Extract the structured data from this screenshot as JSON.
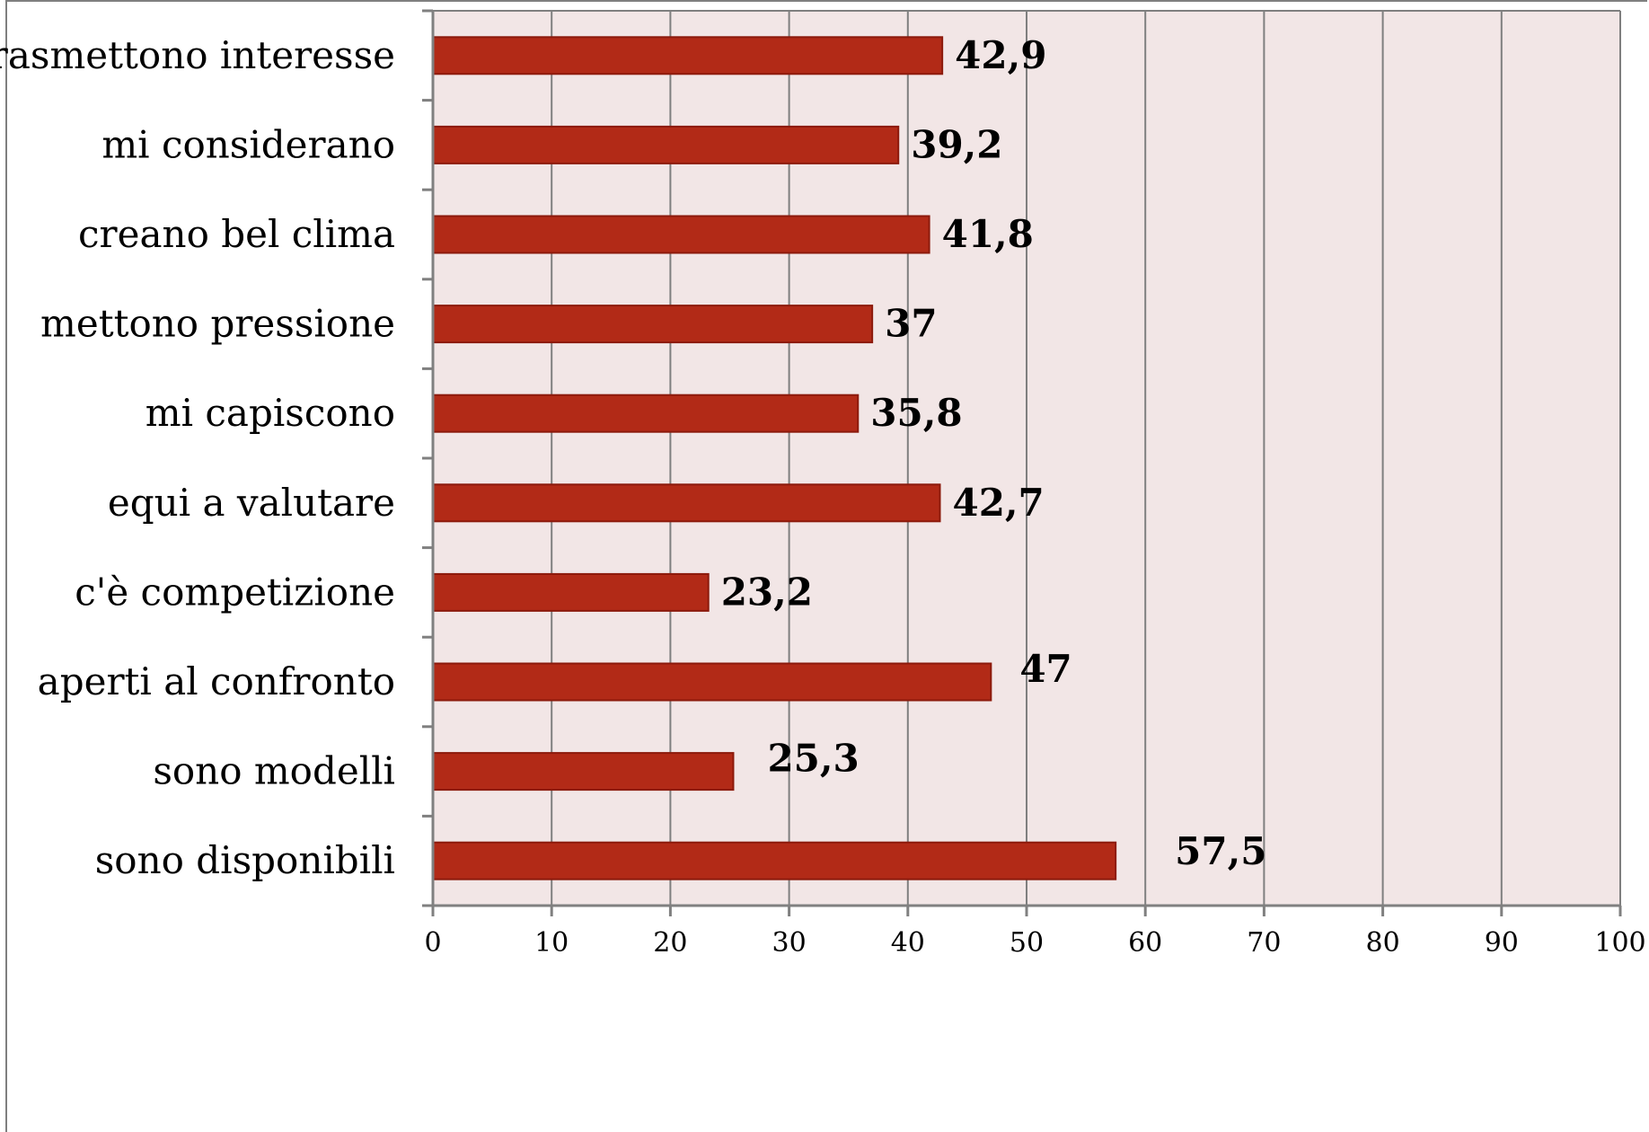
{
  "chart_data": {
    "type": "bar",
    "orientation": "horizontal",
    "title": "",
    "xlabel": "",
    "ylabel": "",
    "categories": [
      "trasmettono interesse",
      "mi considerano",
      "creano bel clima",
      "mettono pressione",
      "mi capiscono",
      "equi a valutare",
      "c'è competizione",
      "aperti al confronto",
      "sono modelli",
      "sono disponibili"
    ],
    "values": [
      42.9,
      39.2,
      41.8,
      37,
      35.8,
      42.7,
      23.2,
      47,
      25.3,
      57.5
    ],
    "value_labels": [
      "42,9",
      "39,2",
      "41,8",
      "37",
      "35,8",
      "42,7",
      "23,2",
      "47",
      "25,3",
      "57,5"
    ],
    "xlim": [
      0,
      100
    ],
    "xticks": [
      0,
      10,
      20,
      30,
      40,
      50,
      60,
      70,
      80,
      90,
      100
    ],
    "grid": "vertical",
    "legend": "none",
    "colors": {
      "bar_fill": "#b22a17",
      "bar_stroke": "#8c1a0c",
      "plot_background": "#f2e6e6",
      "gridline": "#7f7f7f",
      "axis": "#808080"
    }
  }
}
